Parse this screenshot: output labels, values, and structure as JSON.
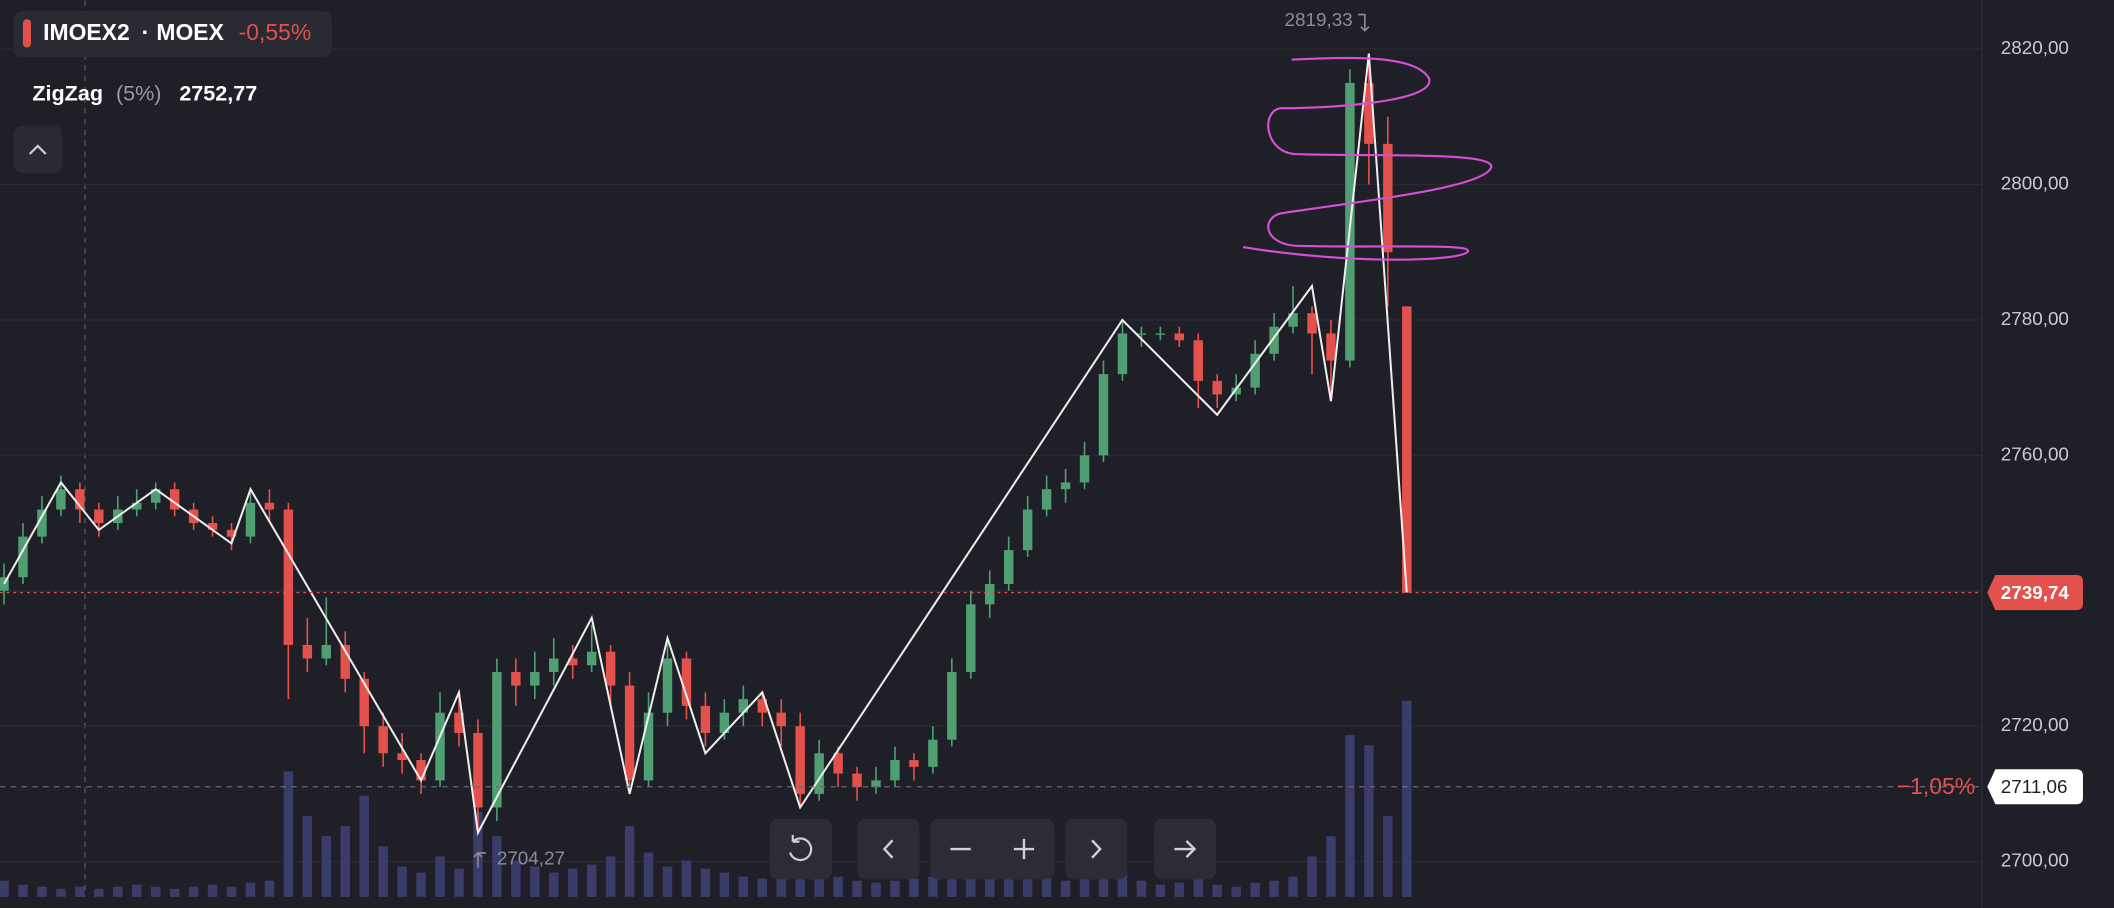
{
  "legend": {
    "ticker": "IMOEX2",
    "exchange": "MOEX",
    "change": "-0,55%",
    "indicator": "ZigZag",
    "indicator_params": "(5%)",
    "indicator_value": "2752,77"
  },
  "chart_data": {
    "type": "candlestick",
    "ohlc": [
      [
        2740,
        2744,
        2738,
        2742
      ],
      [
        2742,
        2750,
        2741,
        2748
      ],
      [
        2748,
        2754,
        2747,
        2752
      ],
      [
        2752,
        2757,
        2751,
        2755
      ],
      [
        2755,
        2756,
        2750,
        2752
      ],
      [
        2752,
        2753,
        2748,
        2750
      ],
      [
        2750,
        2754,
        2749,
        2752
      ],
      [
        2752,
        2755,
        2751,
        2753
      ],
      [
        2753,
        2756,
        2752,
        2755
      ],
      [
        2755,
        2756,
        2751,
        2752
      ],
      [
        2752,
        2753,
        2749,
        2750
      ],
      [
        2750,
        2751,
        2748,
        2749
      ],
      [
        2749,
        2750,
        2746,
        2748
      ],
      [
        2748,
        2755,
        2747,
        2753
      ],
      [
        2753,
        2755,
        2750,
        2752
      ],
      [
        2752,
        2753,
        2724,
        2732
      ],
      [
        2732,
        2736,
        2728,
        2730
      ],
      [
        2730,
        2739,
        2729,
        2732
      ],
      [
        2732,
        2734,
        2725,
        2727
      ],
      [
        2727,
        2728,
        2716,
        2720
      ],
      [
        2720,
        2722,
        2714,
        2716
      ],
      [
        2716,
        2719,
        2713,
        2715
      ],
      [
        2715,
        2716,
        2710,
        2712
      ],
      [
        2712,
        2725,
        2711,
        2722
      ],
      [
        2722,
        2725,
        2717,
        2719
      ],
      [
        2719,
        2721,
        2704.27,
        2708
      ],
      [
        2708,
        2730,
        2706,
        2728
      ],
      [
        2728,
        2730,
        2723,
        2726
      ],
      [
        2726,
        2731,
        2724,
        2728
      ],
      [
        2728,
        2733,
        2726,
        2730
      ],
      [
        2730,
        2732,
        2727,
        2729
      ],
      [
        2729,
        2735,
        2728,
        2731
      ],
      [
        2731,
        2732,
        2723,
        2726
      ],
      [
        2726,
        2728,
        2710,
        2712
      ],
      [
        2712,
        2725,
        2711,
        2722
      ],
      [
        2722,
        2733,
        2720,
        2730
      ],
      [
        2730,
        2731,
        2721,
        2723
      ],
      [
        2723,
        2725,
        2717,
        2719
      ],
      [
        2719,
        2724,
        2718,
        2722
      ],
      [
        2722,
        2726,
        2720,
        2724
      ],
      [
        2724,
        2725,
        2720,
        2722
      ],
      [
        2722,
        2724,
        2717,
        2720
      ],
      [
        2720,
        2722,
        2708,
        2710
      ],
      [
        2710,
        2718,
        2709,
        2716
      ],
      [
        2716,
        2717,
        2711,
        2713
      ],
      [
        2713,
        2714,
        2709,
        2711
      ],
      [
        2711,
        2714,
        2710,
        2712
      ],
      [
        2712,
        2717,
        2711,
        2715
      ],
      [
        2715,
        2716,
        2712,
        2714
      ],
      [
        2714,
        2720,
        2713,
        2718
      ],
      [
        2718,
        2730,
        2717,
        2728
      ],
      [
        2728,
        2740,
        2727,
        2738
      ],
      [
        2738,
        2743,
        2736,
        2741
      ],
      [
        2741,
        2748,
        2740,
        2746
      ],
      [
        2746,
        2754,
        2745,
        2752
      ],
      [
        2752,
        2757,
        2751,
        2755
      ],
      [
        2755,
        2758,
        2753,
        2756
      ],
      [
        2756,
        2762,
        2755,
        2760
      ],
      [
        2760,
        2774,
        2759,
        2772
      ],
      [
        2772,
        2780,
        2771,
        2778
      ],
      [
        2778,
        2779,
        2776,
        2778
      ],
      [
        2778,
        2779,
        2777,
        2778
      ],
      [
        2778,
        2779,
        2776,
        2777
      ],
      [
        2777,
        2778,
        2767,
        2771
      ],
      [
        2771,
        2772,
        2767,
        2769
      ],
      [
        2769,
        2772,
        2768,
        2770
      ],
      [
        2770,
        2777,
        2769,
        2775
      ],
      [
        2775,
        2781,
        2774,
        2779
      ],
      [
        2779,
        2785,
        2778,
        2781
      ],
      [
        2781,
        2782,
        2772,
        2778
      ],
      [
        2778,
        2780,
        2768,
        2774
      ],
      [
        2774,
        2817,
        2773,
        2815
      ],
      [
        2815,
        2819.33,
        2800,
        2806
      ],
      [
        2806,
        2810,
        2782,
        2790
      ],
      [
        2782,
        2782,
        2739.74,
        2739.74
      ]
    ],
    "volume": [
      8,
      6,
      5,
      4,
      5,
      4,
      5,
      6,
      5,
      4,
      5,
      6,
      5,
      7,
      8,
      62,
      40,
      30,
      35,
      50,
      25,
      15,
      12,
      20,
      14,
      42,
      30,
      18,
      15,
      12,
      14,
      16,
      20,
      35,
      22,
      15,
      18,
      14,
      12,
      10,
      9,
      12,
      30,
      15,
      10,
      8,
      7,
      8,
      9,
      10,
      18,
      15,
      12,
      10,
      11,
      9,
      8,
      10,
      12,
      14,
      8,
      6,
      7,
      9,
      6,
      5,
      7,
      8,
      10,
      20,
      30,
      80,
      75,
      40,
      97
    ],
    "vlim": [
      0,
      100
    ],
    "ylim": [
      2693.2,
      2827.2
    ],
    "yticks": [
      {
        "value": 2700,
        "label": "2700,00"
      },
      {
        "value": 2720,
        "label": "2720,00"
      },
      {
        "value": 2740,
        "label": "2740,00"
      },
      {
        "value": 2760,
        "label": "2760,00"
      },
      {
        "value": 2780,
        "label": "2780,00"
      },
      {
        "value": 2800,
        "label": "2800,00"
      },
      {
        "value": 2820,
        "label": "2820,00"
      }
    ],
    "grid": true,
    "up_color": "#4f9f72",
    "down_color": "#e2514c",
    "volume_color": "#3a3d6a",
    "zigzag": {
      "color": "#eeeeee",
      "x": [
        0,
        3,
        5,
        8,
        12,
        13,
        22,
        24,
        25,
        31,
        33,
        35,
        37,
        40,
        42,
        59,
        64,
        69,
        70,
        72,
        74
      ],
      "values": [
        2741,
        2756,
        2749,
        2755,
        2747,
        2755,
        2712,
        2725,
        2704.27,
        2736,
        2710,
        2733,
        2716,
        2725,
        2708,
        2780,
        2766,
        2785,
        2768,
        2819.33,
        2739.74
      ]
    },
    "annotations": [
      {
        "x": 72,
        "value": 2819.33,
        "label": "2819,33"
      },
      {
        "x": 25,
        "value": 2704.27,
        "label": "2704,27"
      }
    ],
    "price_lines": [
      {
        "value": 2739.74,
        "label": "2739,74",
        "color": "#e2514c"
      },
      {
        "value": 2711.06,
        "label": "2711,06",
        "change": "−1,05%",
        "color": "#ffffff"
      }
    ]
  }
}
